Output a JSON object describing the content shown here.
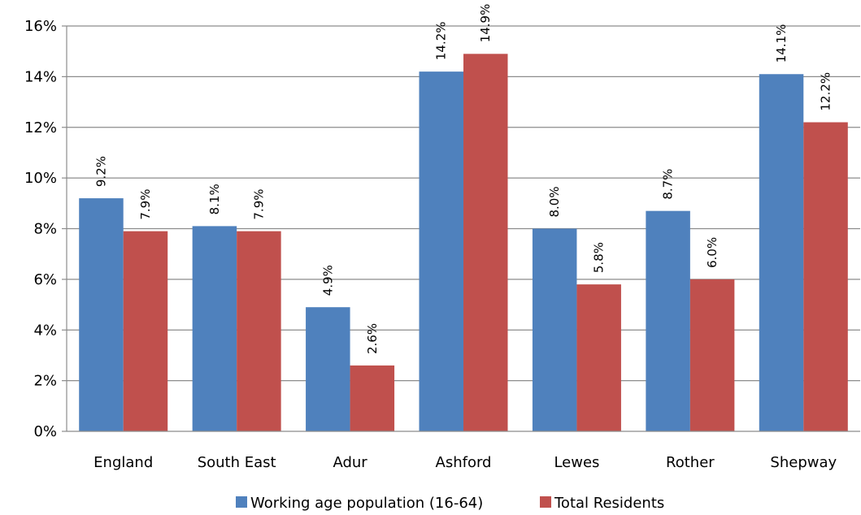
{
  "chart_data": {
    "type": "bar",
    "categories": [
      "England",
      "South East",
      "Adur",
      "Ashford",
      "Lewes",
      "Rother",
      "Shepway"
    ],
    "series": [
      {
        "name": "Working age population (16-64)",
        "values": [
          9.2,
          8.1,
          4.9,
          14.2,
          8.0,
          8.7,
          14.1
        ],
        "labels": [
          "9.2%",
          "8.1%",
          "4.9%",
          "14.2%",
          "8.0%",
          "8.7%",
          "14.1%"
        ],
        "color": "#4F81BD"
      },
      {
        "name": "Total Residents",
        "values": [
          7.9,
          7.9,
          2.6,
          14.9,
          5.8,
          6.0,
          12.2
        ],
        "labels": [
          "7.9%",
          "7.9%",
          "2.6%",
          "14.9%",
          "5.8%",
          "6.0%",
          "12.2%"
        ],
        "color": "#C0504D"
      }
    ],
    "yticks": [
      0,
      2,
      4,
      6,
      8,
      10,
      12,
      14,
      16
    ],
    "ytick_labels": [
      "0%",
      "2%",
      "4%",
      "6%",
      "8%",
      "10%",
      "12%",
      "14%",
      "16%"
    ],
    "ylim": [
      0,
      16
    ],
    "grid": true,
    "legend_position": "bottom",
    "title": "",
    "xlabel": "",
    "ylabel": ""
  }
}
